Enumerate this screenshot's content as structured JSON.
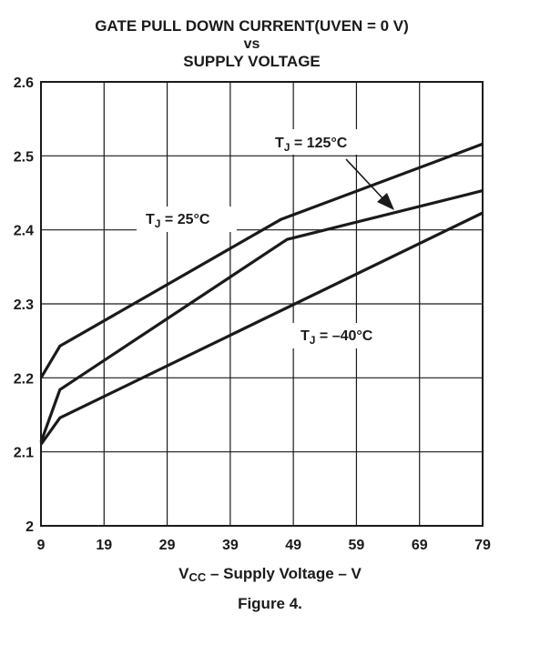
{
  "chart_data": {
    "type": "line",
    "title_lines": [
      "GATE PULL DOWN CURRENT(UVEN = 0 V)",
      "vs",
      "SUPPLY VOLTAGE"
    ],
    "xlabel": {
      "pre": "V",
      "sub": "CC",
      "post": " – Supply Voltage – V"
    },
    "ylabel": "",
    "caption": "Figure 4.",
    "x_ticks": [
      "9",
      "19",
      "29",
      "39",
      "49",
      "59",
      "69",
      "79"
    ],
    "y_ticks": [
      "2",
      "2.1",
      "2.2",
      "2.3",
      "2.4",
      "2.5",
      "2.6"
    ],
    "xlim": [
      9,
      79
    ],
    "ylim": [
      2.0,
      2.6
    ],
    "grid": true,
    "series": [
      {
        "name": {
          "pre": "T",
          "sub": "J",
          "post": " = 125°C"
        },
        "x": [
          9,
          12,
          48,
          79
        ],
        "y": [
          2.113,
          2.184,
          2.387,
          2.453
        ]
      },
      {
        "name": {
          "pre": "T",
          "sub": "J",
          "post": " = 25°C"
        },
        "x": [
          9,
          12,
          47,
          79
        ],
        "y": [
          2.2,
          2.243,
          2.414,
          2.516
        ]
      },
      {
        "name": {
          "pre": "T",
          "sub": "J",
          "post": " = –40°C"
        },
        "x": [
          9,
          12,
          79
        ],
        "y": [
          2.11,
          2.146,
          2.423
        ]
      }
    ]
  }
}
